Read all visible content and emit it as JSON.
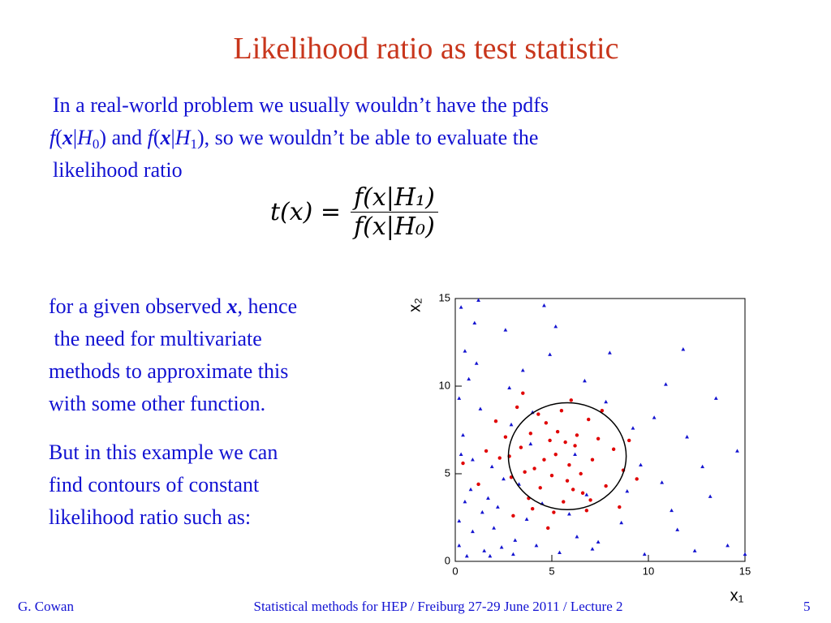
{
  "header": {
    "title": "Likelihood ratio as test statistic"
  },
  "intro": [
    "In a real-world problem we usually wouldn’t have the pdfs",
    "f",
    "(",
    "x",
    "|",
    "H",
    "0",
    ") and ",
    "f",
    "(",
    "x",
    "|",
    "H",
    "1",
    "), so we wouldn’t be able to evaluate the",
    "likelihood ratio"
  ],
  "formula": {
    "lhs": "t(x) =",
    "numerator": "f(x|H₁)",
    "denominator": "f(x|H₀)"
  },
  "left_text": {
    "lines1": [
      "for a given observed ",
      "x",
      ", hence",
      " the need for multivariate",
      "methods to approximate this",
      "with some other function."
    ],
    "lines2": [
      "But in this example we can",
      "find contours of constant",
      "likelihood ratio such as:"
    ]
  },
  "chart_data": {
    "type": "scatter",
    "xlabel": "x₁",
    "ylabel": "x₂",
    "xlim": [
      0,
      15
    ],
    "ylim": [
      0,
      15
    ],
    "xticks": [
      0,
      5,
      10,
      15
    ],
    "yticks": [
      0,
      5,
      10,
      15
    ],
    "contour": {
      "center": [
        5.8,
        6
      ],
      "radius": 3.05
    },
    "series": [
      {
        "color": "#e00000",
        "marker": "circle",
        "x": [
          5.2,
          4.1,
          6.3,
          5.8,
          3.4,
          7.1,
          4.7,
          6.6,
          2.9,
          5.5,
          8.2,
          3.8,
          6.9,
          4.4,
          5.9,
          2.6,
          7.8,
          5.1,
          3.2,
          6.2,
          4.9,
          7.4,
          3.6,
          5.6,
          2.3,
          8.7,
          4.3,
          6.8,
          1.6,
          5.3,
          7.0,
          3.0,
          6.0,
          4.6,
          9.4,
          2.1,
          5.7,
          3.9,
          6.5,
          4.0,
          7.6,
          1.2,
          5.0,
          8.5,
          2.8,
          6.1,
          4.8,
          3.5,
          9.0,
          0.4
        ],
        "y": [
          6.1,
          5.3,
          7.2,
          4.6,
          6.5,
          5.8,
          7.9,
          3.9,
          4.8,
          8.6,
          6.4,
          3.6,
          8.1,
          4.2,
          5.5,
          7.1,
          4.3,
          2.8,
          8.8,
          6.6,
          6.9,
          7.0,
          5.1,
          3.4,
          5.9,
          5.2,
          8.4,
          2.9,
          6.3,
          7.4,
          3.5,
          2.6,
          9.2,
          5.8,
          4.7,
          8.0,
          6.8,
          7.3,
          5.0,
          3.0,
          8.6,
          4.4,
          4.9,
          3.1,
          6.0,
          4.1,
          1.9,
          9.6,
          6.9,
          5.6
        ]
      },
      {
        "color": "#1414d0",
        "marker": "triangle",
        "x": [
          0.3,
          0.5,
          0.2,
          1.1,
          0.4,
          0.8,
          0.2,
          1.5,
          2.2,
          0.6,
          3.1,
          1.9,
          2.6,
          1.3,
          4.2,
          0.9,
          2.8,
          3.7,
          5.4,
          1.7,
          6.3,
          0.3,
          4.9,
          2.4,
          7.1,
          3.3,
          8.6,
          1.0,
          5.9,
          9.8,
          2.0,
          0.7,
          10.7,
          3.9,
          11.5,
          6.7,
          12.4,
          4.5,
          7.8,
          13.2,
          1.4,
          9.2,
          14.1,
          3.5,
          10.3,
          12.8,
          0.5,
          8.0,
          14.6,
          5.2,
          2.9,
          11.2,
          0.2,
          6.8,
          13.5,
          1.8,
          9.6,
          4.0,
          12.0,
          7.4,
          0.9,
          10.9,
          2.5,
          8.9,
          15.0,
          3.0,
          11.8,
          6.2,
          4.6,
          1.2
        ],
        "y": [
          14.5,
          12.0,
          9.3,
          11.3,
          7.2,
          4.1,
          2.3,
          0.6,
          3.1,
          0.3,
          1.2,
          5.4,
          13.2,
          8.7,
          0.9,
          1.7,
          9.9,
          2.4,
          0.5,
          3.6,
          1.4,
          6.1,
          11.8,
          0.8,
          0.7,
          4.4,
          2.2,
          13.6,
          2.7,
          0.4,
          1.9,
          10.4,
          4.5,
          6.7,
          1.8,
          10.3,
          0.6,
          3.3,
          9.1,
          3.7,
          2.8,
          7.6,
          0.9,
          10.9,
          8.2,
          5.4,
          3.4,
          11.9,
          6.3,
          13.4,
          7.8,
          2.9,
          0.9,
          3.8,
          9.3,
          0.3,
          5.5,
          8.5,
          7.1,
          1.1,
          5.8,
          10.1,
          4.7,
          4.0,
          0.4,
          0.4,
          12.1,
          6.1,
          14.6,
          14.9
        ]
      }
    ]
  },
  "footer": {
    "author": "G. Cowan",
    "center": "Statistical methods for HEP / Freiburg 27-29 June 2011 / Lecture 2",
    "page": "5"
  }
}
